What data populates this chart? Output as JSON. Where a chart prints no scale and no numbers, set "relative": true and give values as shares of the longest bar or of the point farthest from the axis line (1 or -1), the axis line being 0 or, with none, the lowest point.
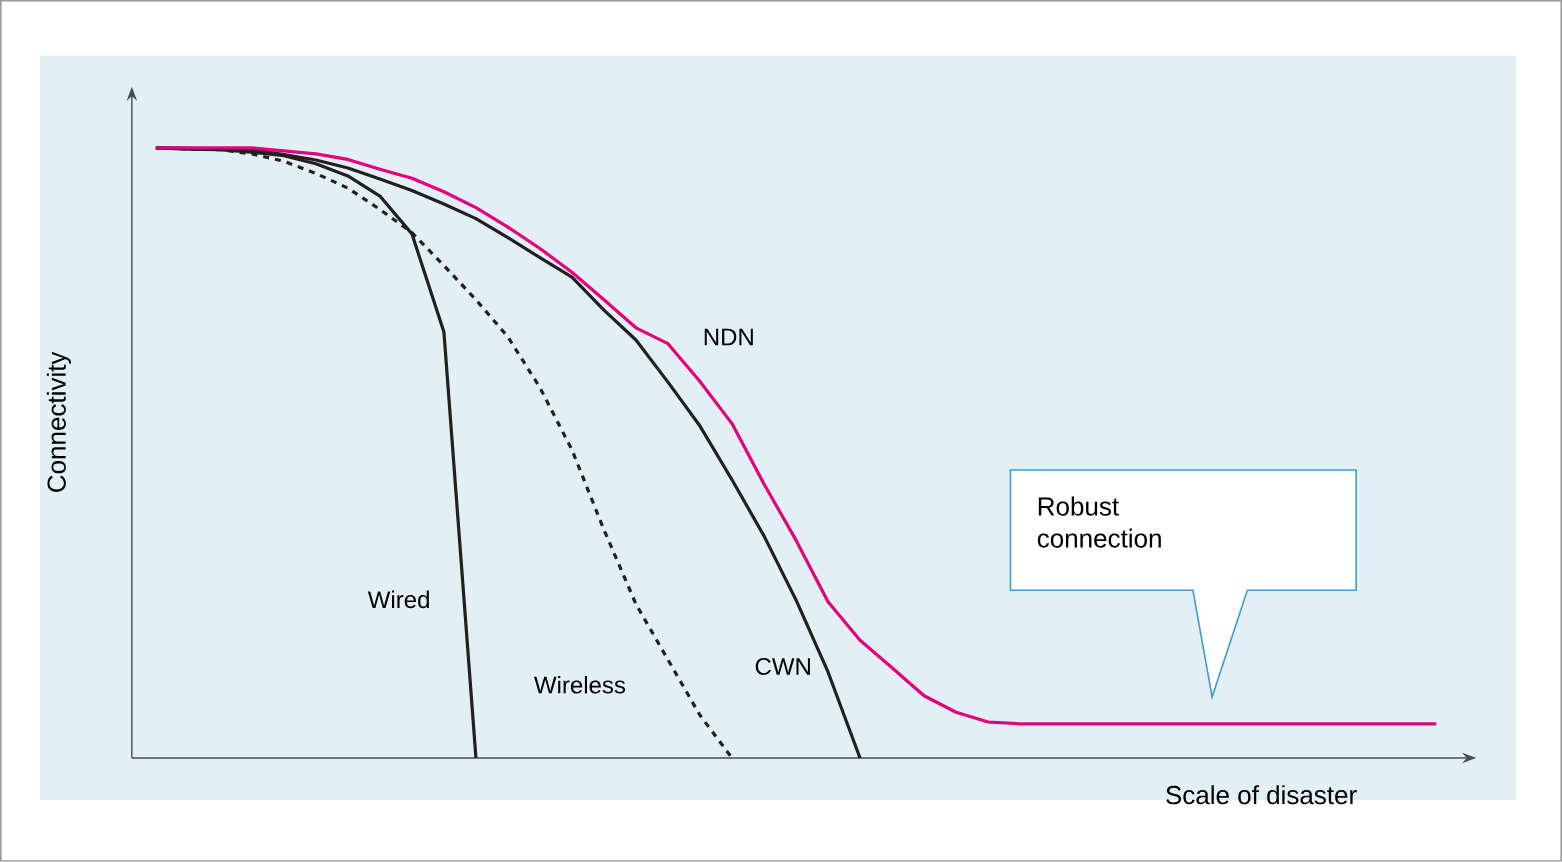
{
  "chart_data": {
    "type": "line",
    "relative": true,
    "xlabel": "Scale of disaster",
    "ylabel": "Connectivity",
    "marker": "none",
    "annotations": [
      "Robust connection"
    ],
    "categories": [
      null,
      null,
      null,
      null,
      null,
      null,
      null,
      null,
      null,
      null,
      null,
      null,
      null,
      null,
      null,
      null,
      null,
      null,
      null,
      null,
      null,
      null,
      null,
      null,
      null,
      null,
      null,
      null,
      null,
      null,
      null,
      null,
      null,
      null,
      null,
      null,
      null,
      null,
      null,
      null,
      null
    ],
    "series": [
      {
        "name": "Wired",
        "color": "#231f20",
        "line_style": "solid",
        "values": [
          1.0,
          0.998,
          0.997,
          0.993,
          0.987,
          0.974,
          0.954,
          0.921,
          0.859,
          0.698,
          0,
          null,
          null,
          null,
          null,
          null,
          null,
          null,
          null,
          null,
          null,
          null,
          null,
          null,
          null,
          null,
          null,
          null,
          null,
          null,
          null,
          null,
          null,
          null,
          null,
          null,
          null,
          null,
          null,
          null,
          null
        ]
      },
      {
        "name": "Wireless",
        "color": "#231f20",
        "line_style": "dashed",
        "values": [
          1.0,
          0.998,
          0.997,
          0.99,
          0.978,
          0.958,
          0.934,
          0.899,
          0.861,
          0.807,
          0.751,
          0.69,
          0.607,
          0.505,
          0.374,
          0.252,
          0.161,
          0.07,
          0,
          null,
          null,
          null,
          null,
          null,
          null,
          null,
          null,
          null,
          null,
          null,
          null,
          null,
          null,
          null,
          null,
          null,
          null,
          null,
          null,
          null,
          null
        ]
      },
      {
        "name": "CWN",
        "color": "#231f20",
        "line_style": "solid",
        "values": [
          1.0,
          0.999,
          0.998,
          0.997,
          0.989,
          0.98,
          0.967,
          0.949,
          0.93,
          0.908,
          0.884,
          0.853,
          0.82,
          0.788,
          0.734,
          0.685,
          0.616,
          0.544,
          0.456,
          0.364,
          0.259,
          0.141,
          0,
          null,
          null,
          null,
          null,
          null,
          null,
          null,
          null,
          null,
          null,
          null,
          null,
          null,
          null,
          null,
          null,
          null,
          null
        ]
      },
      {
        "name": "NDN",
        "color": "#e6007e",
        "line_style": "solid",
        "values": [
          1.0,
          1.0,
          1.0,
          1.0,
          0.995,
          0.99,
          0.981,
          0.965,
          0.95,
          0.928,
          0.902,
          0.87,
          0.835,
          0.796,
          0.751,
          0.705,
          0.679,
          0.617,
          0.548,
          0.449,
          0.357,
          0.256,
          0.193,
          0.148,
          0.102,
          0.075,
          0.059,
          0.056,
          0.056,
          0.056,
          0.056,
          0.056,
          0.056,
          0.056,
          0.056,
          0.056,
          0.056,
          0.056,
          0.056,
          0.056,
          0.056
        ]
      }
    ]
  }
}
